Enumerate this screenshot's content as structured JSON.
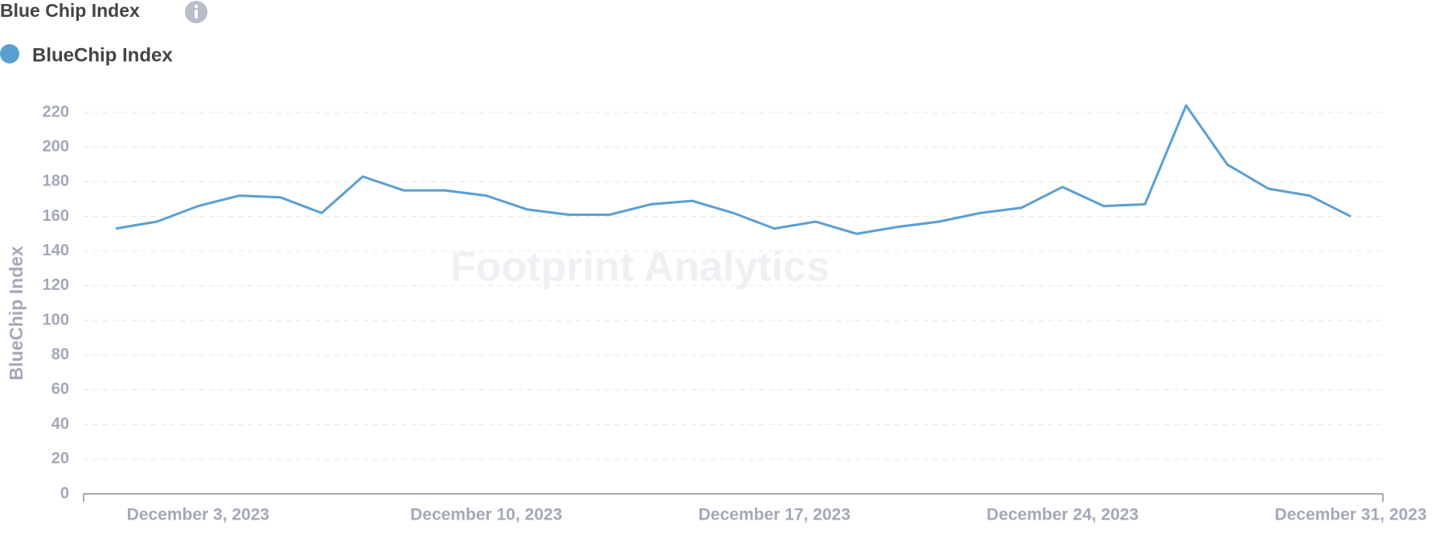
{
  "chart_data": {
    "type": "line",
    "title": "Blue Chip Index",
    "y_label": "BlueChip Index",
    "watermark": "Footprint Analytics",
    "x": [
      "2023-12-01",
      "2023-12-02",
      "2023-12-03",
      "2023-12-04",
      "2023-12-05",
      "2023-12-06",
      "2023-12-07",
      "2023-12-08",
      "2023-12-09",
      "2023-12-10",
      "2023-12-11",
      "2023-12-12",
      "2023-12-13",
      "2023-12-14",
      "2023-12-15",
      "2023-12-16",
      "2023-12-17",
      "2023-12-18",
      "2023-12-19",
      "2023-12-20",
      "2023-12-21",
      "2023-12-22",
      "2023-12-23",
      "2023-12-24",
      "2023-12-25",
      "2023-12-26",
      "2023-12-27",
      "2023-12-28",
      "2023-12-29",
      "2023-12-30",
      "2023-12-31"
    ],
    "series": [
      {
        "name": "BlueChip Index",
        "color": "#5b9fd1",
        "values": [
          153,
          157,
          166,
          172,
          171,
          162,
          183,
          175,
          175,
          172,
          164,
          161,
          161,
          167,
          169,
          162,
          153,
          157,
          150,
          154,
          157,
          162,
          165,
          177,
          166,
          167,
          224,
          190,
          176,
          172,
          160
        ]
      }
    ],
    "xticks": [
      {
        "value": "2023-12-03",
        "label": "December 3, 2023"
      },
      {
        "value": "2023-12-10",
        "label": "December 10, 2023"
      },
      {
        "value": "2023-12-17",
        "label": "December 17, 2023"
      },
      {
        "value": "2023-12-24",
        "label": "December 24, 2023"
      },
      {
        "value": "2023-12-31",
        "label": "December 31, 2023"
      }
    ],
    "ylim": [
      0,
      220
    ],
    "yticks": [
      0,
      20,
      40,
      60,
      80,
      100,
      120,
      140,
      160,
      180,
      200,
      220
    ],
    "grid": true
  }
}
